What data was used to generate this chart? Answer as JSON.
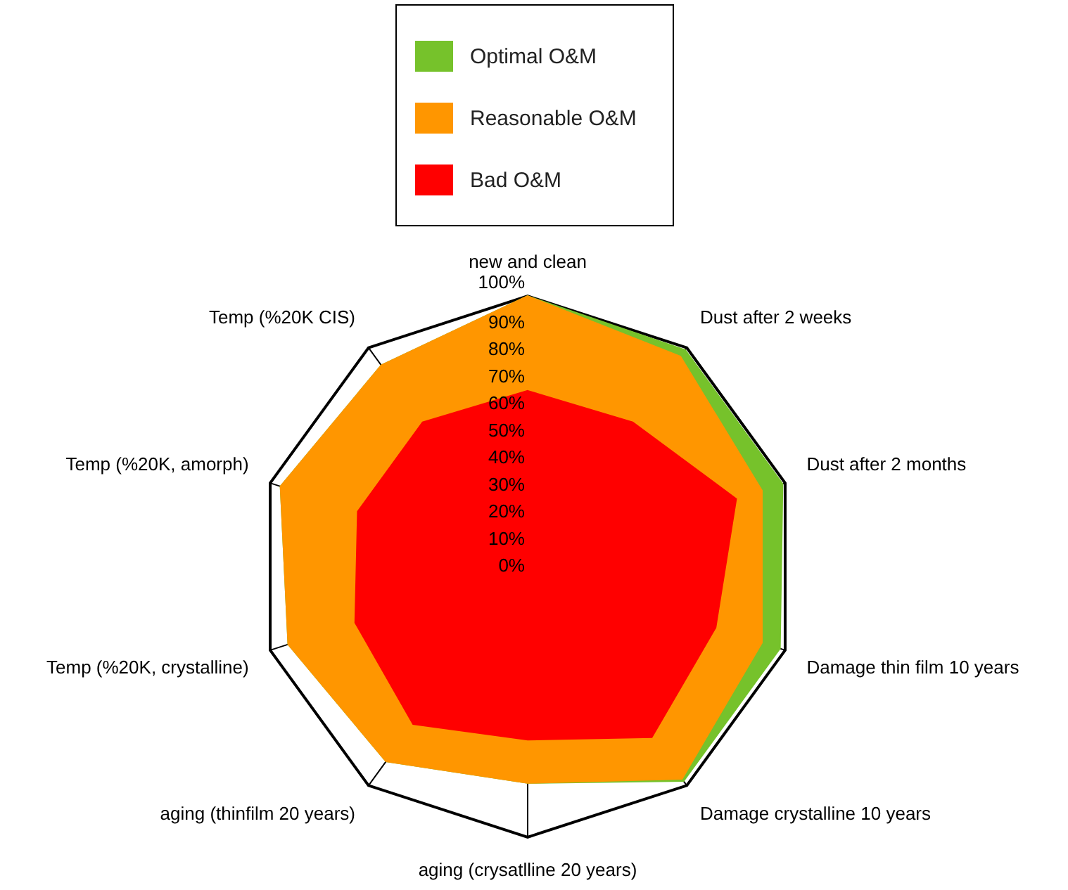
{
  "chart_data": {
    "type": "radar",
    "categories": [
      "new and clean",
      "Dust after 2 weeks",
      "Dust after 2 months",
      "Damage thin film 10 years",
      "Damage crystalline 10 years",
      "aging (crysatlline 20 years)",
      "aging (thinfilm 20 years)",
      "Temp (%20K, crystalline)",
      "Temp (%20K, amorph)",
      "Temp (%20K CIS)"
    ],
    "series": [
      {
        "name": "Optimal O&M",
        "color": "#76c22b",
        "values": [
          100,
          99,
          99,
          98,
          98,
          80,
          89,
          93,
          96,
          92
        ]
      },
      {
        "name": "Reasonable O&M",
        "color": "#ff9600",
        "values": [
          100,
          96,
          91,
          91,
          97,
          80,
          89,
          93,
          96,
          92
        ]
      },
      {
        "name": "Bad O&M",
        "color": "#ff0000",
        "values": [
          65,
          66,
          81,
          73,
          78,
          64,
          72,
          67,
          66,
          66
        ]
      }
    ],
    "ylim": [
      0,
      100
    ],
    "yticks": [
      {
        "value": 0,
        "label": "0%"
      },
      {
        "value": 10,
        "label": "10%"
      },
      {
        "value": 20,
        "label": "20%"
      },
      {
        "value": 30,
        "label": "30%"
      },
      {
        "value": 40,
        "label": "40%"
      },
      {
        "value": 50,
        "label": "50%"
      },
      {
        "value": 60,
        "label": "60%"
      },
      {
        "value": 70,
        "label": "70%"
      },
      {
        "value": 80,
        "label": "80%"
      },
      {
        "value": 90,
        "label": "90%"
      },
      {
        "value": 100,
        "label": "100%"
      }
    ],
    "legend": "top"
  }
}
